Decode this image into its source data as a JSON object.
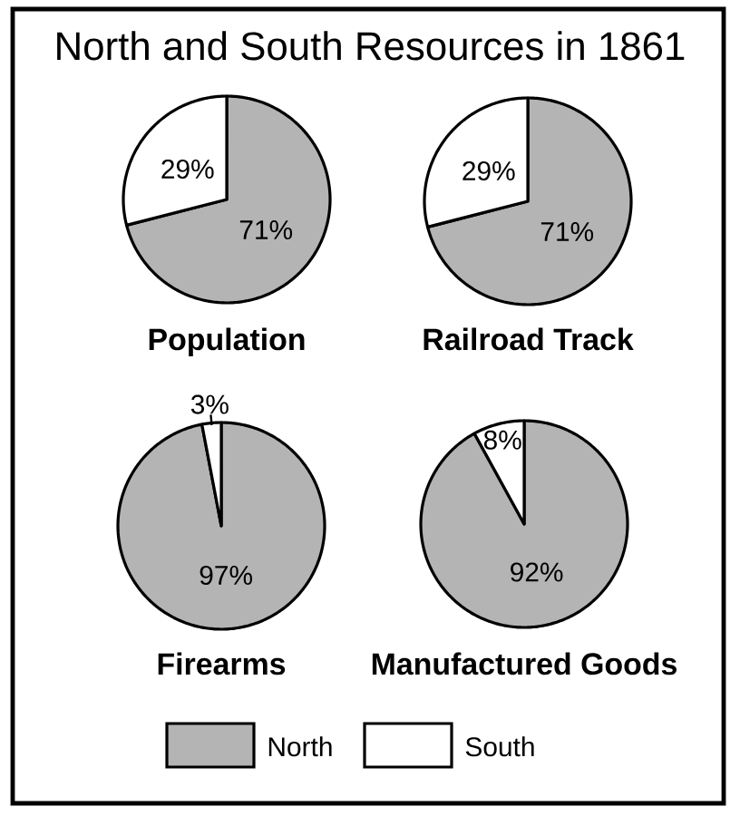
{
  "chart_data": [
    {
      "type": "pie",
      "title": "Population",
      "annotations": [
        "North and South Resources in 1861"
      ],
      "categories": [
        null,
        null
      ],
      "values": [
        71,
        29
      ],
      "colors": [
        "#b4b4b4",
        "#ffffff"
      ],
      "value_labels": [
        "71%",
        "29%"
      ]
    },
    {
      "type": "pie",
      "title": "Railroad Track",
      "categories": [
        null,
        null
      ],
      "values": [
        71,
        29
      ],
      "colors": [
        "#b4b4b4",
        "#ffffff"
      ],
      "value_labels": [
        "71%",
        "29%"
      ]
    },
    {
      "type": "pie",
      "title": "Firearms",
      "categories": [
        null,
        null
      ],
      "values": [
        97,
        3
      ],
      "colors": [
        "#b4b4b4",
        "#ffffff"
      ],
      "value_labels": [
        "97%",
        "3%"
      ]
    },
    {
      "type": "pie",
      "title": "Manufactured Goods",
      "categories": [
        "North",
        "South"
      ],
      "values": [
        92,
        8
      ],
      "colors": [
        "#b4b4b4",
        "#ffffff"
      ],
      "value_labels": [
        "92%",
        "8%"
      ],
      "legend": "bottom"
    }
  ]
}
